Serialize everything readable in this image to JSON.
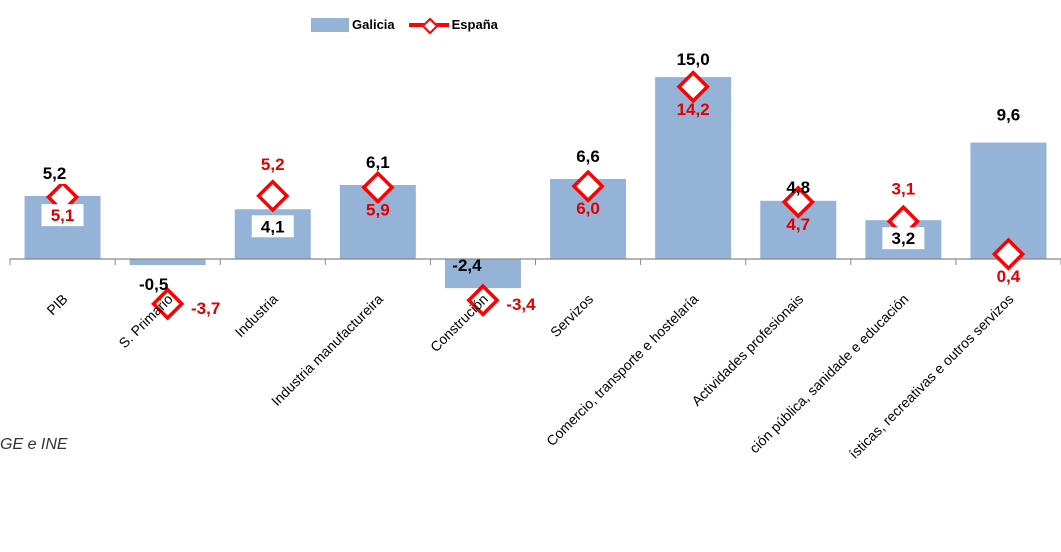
{
  "source_note": "GE e INE",
  "legend": {
    "series1": "Galicia",
    "series2": "España"
  },
  "colors": {
    "bar": "#95b3d7",
    "line_marker": "#ff0000",
    "bar_label": "#000000",
    "marker_label": "#e00000",
    "axis": "#888888"
  },
  "chart_data": {
    "type": "bar",
    "categories": [
      "PIB",
      "S. Primario",
      "Industria",
      "Industria manufactureira",
      "Construción",
      "Servizos",
      "Comercio, transporte e hostelaría",
      "Actividades profesionais",
      "ción pública, sanidade e educación",
      "ísticas, recreativas e outros servizos"
    ],
    "series": [
      {
        "name": "Galicia",
        "kind": "bar",
        "values": [
          5.2,
          -0.5,
          4.1,
          6.1,
          -2.4,
          6.6,
          15.0,
          4.8,
          3.2,
          9.6
        ],
        "labels": [
          "5,2",
          "-0,5",
          "4,1",
          "6,1",
          "-2,4",
          "6,6",
          "15,0",
          "4,8",
          "3,2",
          "9,6"
        ]
      },
      {
        "name": "España",
        "kind": "marker",
        "values": [
          5.1,
          -3.7,
          5.2,
          5.9,
          -3.4,
          6.0,
          14.2,
          4.7,
          3.1,
          0.4
        ],
        "labels": [
          "5,1",
          "-3,7",
          "5,2",
          "5,9",
          "-3,4",
          "6,0",
          "14,2",
          "4,7",
          "3,1",
          "0,4"
        ]
      }
    ],
    "legend_position": "top",
    "grid": false
  }
}
